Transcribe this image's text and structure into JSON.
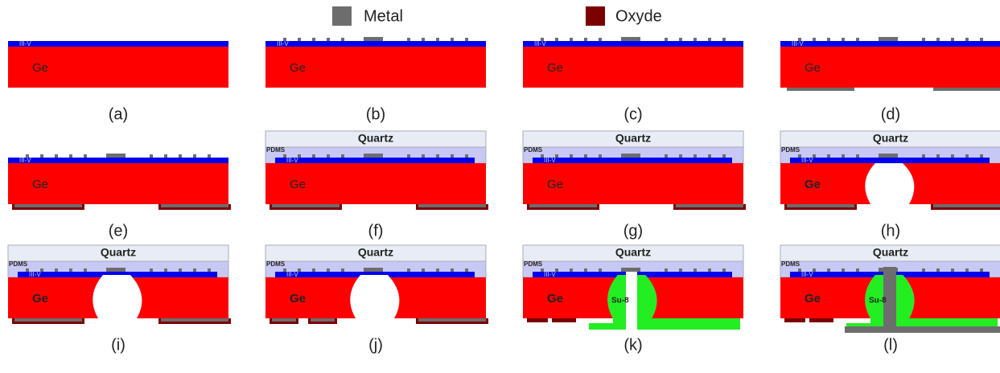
{
  "legend": [
    {
      "label": "Metal"
    },
    {
      "label": "Oxyde"
    }
  ],
  "panels": [
    {
      "caption": "(a)",
      "layer": "III-V",
      "substrate": "Ge"
    },
    {
      "caption": "(b)",
      "layer": "III-V",
      "substrate": "Ge"
    },
    {
      "caption": "(c)",
      "layer": "III-V",
      "substrate": "Ge"
    },
    {
      "caption": "(d)",
      "layer": "III-V",
      "substrate": "Ge"
    },
    {
      "caption": "(e)",
      "layer": "III-V",
      "substrate": "Ge"
    },
    {
      "caption": "(f)",
      "cover": "Quartz",
      "glue": "PDMS",
      "layer": "III-V",
      "substrate": "Ge"
    },
    {
      "caption": "(g)",
      "cover": "Quartz",
      "glue": "PDMS",
      "layer": "III-V",
      "substrate": "Ge"
    },
    {
      "caption": "(h)",
      "cover": "Quartz",
      "glue": "PDMS",
      "layer": "III-V",
      "substrate": "Ge"
    },
    {
      "caption": "(i)",
      "cover": "Quartz",
      "glue": "PDMS",
      "layer": "III-V",
      "substrate": "Ge"
    },
    {
      "caption": "(j)",
      "cover": "Quartz",
      "glue": "PDMS",
      "layer": "III-V",
      "substrate": "Ge"
    },
    {
      "caption": "(k)",
      "cover": "Quartz",
      "glue": "PDMS",
      "layer": "III-V",
      "substrate": "Ge",
      "filler": "Su-8"
    },
    {
      "caption": "(l)",
      "cover": "Quartz",
      "glue": "PDMS",
      "layer": "III-V",
      "substrate": "Ge",
      "filler": "Su-8"
    }
  ]
}
